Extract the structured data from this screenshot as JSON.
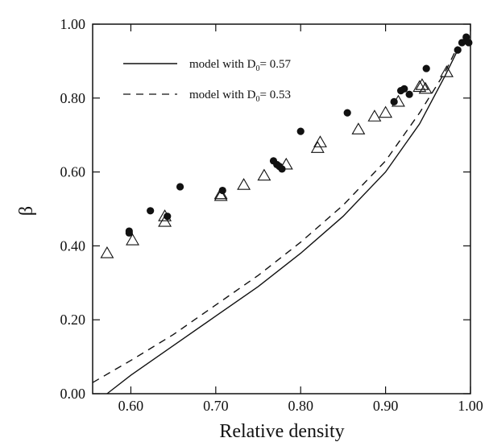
{
  "chart_data": {
    "type": "scatter",
    "title": "",
    "xlabel": "Relative density",
    "ylabel": "β",
    "xlim": [
      0.555,
      1.0
    ],
    "ylim": [
      0.0,
      1.0
    ],
    "xticks": [
      "0.60",
      "0.70",
      "0.80",
      "0.90",
      "1.00"
    ],
    "xtick_values": [
      0.6,
      0.7,
      0.8,
      0.9,
      1.0
    ],
    "yticks": [
      "0.00",
      "0.20",
      "0.40",
      "0.60",
      "0.80",
      "1.00"
    ],
    "ytick_values": [
      0.0,
      0.2,
      0.4,
      0.6,
      0.8,
      1.0
    ],
    "grid": false,
    "legend_position": "upper-left",
    "legend": [
      {
        "prefix": "model with D",
        "subscript": "0",
        "suffix": "= 0.57",
        "style": "solid"
      },
      {
        "prefix": "model with D",
        "subscript": "0",
        "suffix": "= 0.53",
        "style": "dashed"
      }
    ],
    "series": [
      {
        "style": "solid-line",
        "points": [
          [
            0.572,
            0.0
          ],
          [
            0.6,
            0.05
          ],
          [
            0.65,
            0.13
          ],
          [
            0.7,
            0.21
          ],
          [
            0.75,
            0.29
          ],
          [
            0.8,
            0.38
          ],
          [
            0.85,
            0.48
          ],
          [
            0.9,
            0.6
          ],
          [
            0.94,
            0.73
          ],
          [
            0.97,
            0.86
          ],
          [
            0.985,
            0.93
          ]
        ]
      },
      {
        "style": "dashed-line",
        "points": [
          [
            0.555,
            0.03
          ],
          [
            0.6,
            0.09
          ],
          [
            0.65,
            0.16
          ],
          [
            0.7,
            0.24
          ],
          [
            0.75,
            0.32
          ],
          [
            0.8,
            0.41
          ],
          [
            0.85,
            0.51
          ],
          [
            0.9,
            0.63
          ],
          [
            0.94,
            0.76
          ],
          [
            0.97,
            0.87
          ],
          [
            0.985,
            0.94
          ]
        ]
      },
      {
        "style": "filled-circle",
        "points": [
          [
            0.598,
            0.44
          ],
          [
            0.598,
            0.435
          ],
          [
            0.623,
            0.495
          ],
          [
            0.643,
            0.48
          ],
          [
            0.658,
            0.56
          ],
          [
            0.708,
            0.55
          ],
          [
            0.768,
            0.63
          ],
          [
            0.772,
            0.62
          ],
          [
            0.775,
            0.615
          ],
          [
            0.778,
            0.608
          ],
          [
            0.8,
            0.71
          ],
          [
            0.855,
            0.76
          ],
          [
            0.91,
            0.79
          ],
          [
            0.918,
            0.82
          ],
          [
            0.922,
            0.825
          ],
          [
            0.928,
            0.81
          ],
          [
            0.948,
            0.88
          ],
          [
            0.985,
            0.93
          ],
          [
            0.99,
            0.95
          ],
          [
            0.995,
            0.955
          ],
          [
            0.995,
            0.965
          ],
          [
            0.998,
            0.95
          ]
        ]
      },
      {
        "style": "open-triangle",
        "points": [
          [
            0.572,
            0.38
          ],
          [
            0.602,
            0.415
          ],
          [
            0.64,
            0.48
          ],
          [
            0.64,
            0.465
          ],
          [
            0.706,
            0.535
          ],
          [
            0.706,
            0.54
          ],
          [
            0.733,
            0.565
          ],
          [
            0.757,
            0.59
          ],
          [
            0.783,
            0.62
          ],
          [
            0.82,
            0.665
          ],
          [
            0.823,
            0.68
          ],
          [
            0.868,
            0.715
          ],
          [
            0.887,
            0.75
          ],
          [
            0.9,
            0.76
          ],
          [
            0.915,
            0.79
          ],
          [
            0.94,
            0.83
          ],
          [
            0.943,
            0.835
          ],
          [
            0.947,
            0.825
          ],
          [
            0.972,
            0.87
          ]
        ]
      }
    ]
  }
}
